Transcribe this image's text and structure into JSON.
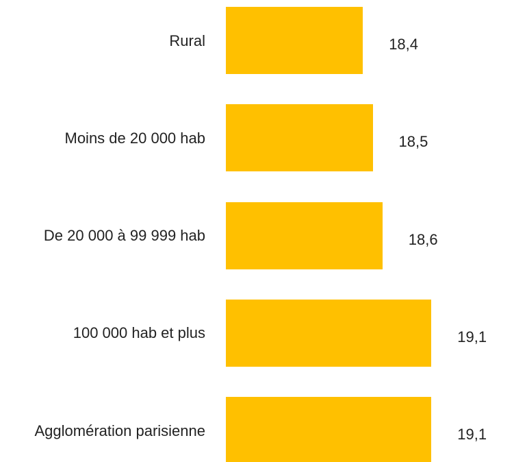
{
  "chart_data": {
    "type": "bar",
    "orientation": "horizontal",
    "categories": [
      "Rural",
      "Moins de 20 000 hab",
      "De 20 000 à 99 999 hab",
      "100 000 hab et plus",
      "Agglomération parisienne"
    ],
    "values": [
      18.4,
      18.5,
      18.6,
      19.1,
      19.1
    ],
    "value_labels": [
      "18,4",
      "18,5",
      "18,6",
      "19,1",
      "19,1"
    ],
    "color": "#ffc000",
    "xlim": [
      17,
      19.5
    ]
  }
}
